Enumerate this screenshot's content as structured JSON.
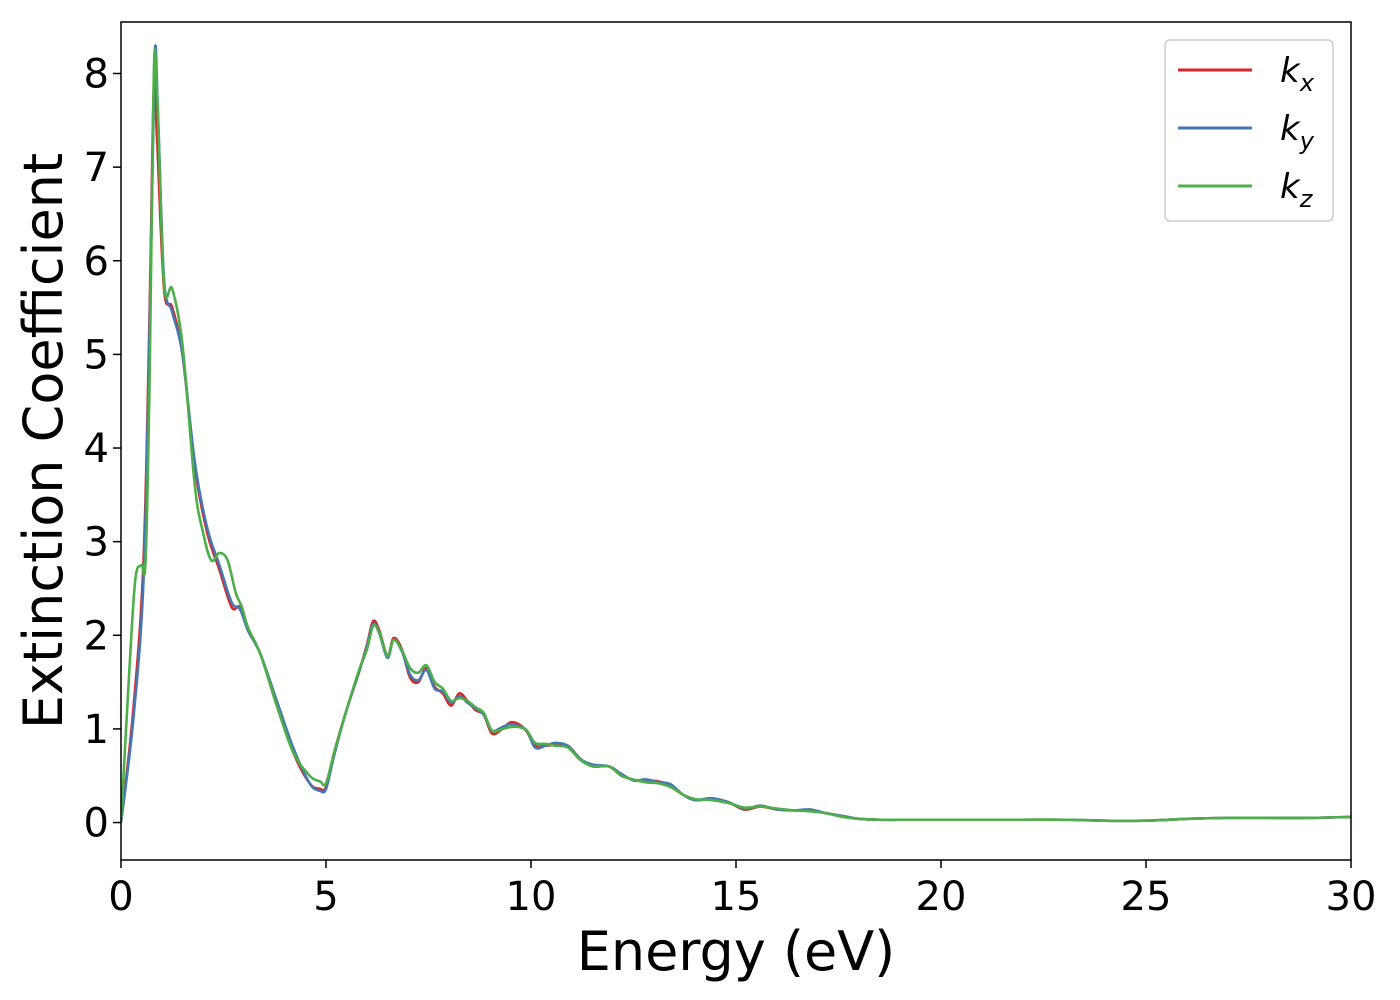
{
  "chart_data": {
    "type": "line",
    "xlabel": "Energy (eV)",
    "ylabel": "Extinction Coefficient",
    "xlim": [
      0,
      30
    ],
    "ylim": [
      -0.4,
      8.55
    ],
    "xticks": [
      0,
      5,
      10,
      15,
      20,
      25,
      30
    ],
    "yticks": [
      0,
      1,
      2,
      3,
      4,
      5,
      6,
      7,
      8
    ],
    "grid": false,
    "legend_position": "top-right",
    "series": [
      {
        "name": "k",
        "subscript": "x",
        "color": "#d62728",
        "x": [
          0,
          0.3,
          0.55,
          0.7,
          0.8,
          0.88,
          1.05,
          1.25,
          1.5,
          1.8,
          2.1,
          2.4,
          2.7,
          2.9,
          3.1,
          3.4,
          3.8,
          4.2,
          4.6,
          4.85,
          5.0,
          5.2,
          5.5,
          5.8,
          6.0,
          6.15,
          6.3,
          6.5,
          6.65,
          6.85,
          7.05,
          7.25,
          7.45,
          7.65,
          7.85,
          8.05,
          8.25,
          8.45,
          8.65,
          8.85,
          9.05,
          9.3,
          9.5,
          9.7,
          9.9,
          10.1,
          10.35,
          10.6,
          10.9,
          11.2,
          11.5,
          11.9,
          12.2,
          12.5,
          12.8,
          13.1,
          13.4,
          13.7,
          14.0,
          14.4,
          14.8,
          15.2,
          15.6,
          16.0,
          16.4,
          16.8,
          17.2,
          17.6,
          18.0,
          18.5,
          19.0,
          20.0,
          21.0,
          22.0,
          23.0,
          24.0,
          25.0,
          26.0,
          27.0,
          28.0,
          29.0,
          30.0
        ],
        "y": [
          0.0,
          1.2,
          2.8,
          5.5,
          7.85,
          7.3,
          5.7,
          5.5,
          5.0,
          3.8,
          3.1,
          2.7,
          2.3,
          2.3,
          2.05,
          1.8,
          1.25,
          0.75,
          0.42,
          0.36,
          0.38,
          0.75,
          1.2,
          1.6,
          1.9,
          2.15,
          2.05,
          1.78,
          1.97,
          1.85,
          1.55,
          1.5,
          1.65,
          1.45,
          1.38,
          1.25,
          1.38,
          1.3,
          1.2,
          1.15,
          0.95,
          1.0,
          1.07,
          1.05,
          0.97,
          0.82,
          0.82,
          0.83,
          0.82,
          0.68,
          0.6,
          0.6,
          0.52,
          0.45,
          0.45,
          0.44,
          0.4,
          0.3,
          0.24,
          0.25,
          0.22,
          0.14,
          0.17,
          0.14,
          0.13,
          0.13,
          0.1,
          0.07,
          0.04,
          0.03,
          0.03,
          0.03,
          0.03,
          0.03,
          0.03,
          0.02,
          0.02,
          0.04,
          0.05,
          0.05,
          0.05,
          0.06
        ]
      },
      {
        "name": "k",
        "subscript": "y",
        "color": "#4477b4",
        "x": [
          0,
          0.3,
          0.55,
          0.7,
          0.82,
          0.9,
          1.05,
          1.25,
          1.5,
          1.8,
          2.1,
          2.4,
          2.7,
          2.9,
          3.1,
          3.4,
          3.8,
          4.2,
          4.6,
          4.85,
          5.0,
          5.2,
          5.5,
          5.8,
          6.0,
          6.15,
          6.3,
          6.5,
          6.65,
          6.85,
          7.05,
          7.25,
          7.45,
          7.65,
          7.85,
          8.05,
          8.25,
          8.45,
          8.65,
          8.85,
          9.05,
          9.3,
          9.5,
          9.7,
          9.9,
          10.1,
          10.35,
          10.6,
          10.9,
          11.2,
          11.5,
          11.9,
          12.2,
          12.5,
          12.8,
          13.1,
          13.4,
          13.7,
          14.0,
          14.4,
          14.8,
          15.2,
          15.6,
          16.0,
          16.4,
          16.8,
          17.2,
          17.6,
          18.0,
          18.5,
          19.0,
          20.0,
          21.0,
          22.0,
          23.0,
          24.0,
          25.0,
          26.0,
          27.0,
          28.0,
          29.0,
          30.0
        ],
        "y": [
          0.0,
          1.1,
          2.6,
          5.3,
          8.17,
          7.6,
          5.8,
          5.45,
          5.0,
          3.85,
          3.15,
          2.75,
          2.35,
          2.28,
          2.05,
          1.8,
          1.3,
          0.8,
          0.42,
          0.34,
          0.36,
          0.72,
          1.2,
          1.6,
          1.88,
          2.12,
          2.02,
          1.76,
          1.95,
          1.83,
          1.58,
          1.52,
          1.63,
          1.43,
          1.4,
          1.28,
          1.35,
          1.28,
          1.22,
          1.15,
          0.98,
          1.02,
          1.05,
          1.03,
          0.98,
          0.8,
          0.82,
          0.85,
          0.82,
          0.68,
          0.62,
          0.6,
          0.52,
          0.45,
          0.46,
          0.43,
          0.41,
          0.3,
          0.24,
          0.26,
          0.22,
          0.15,
          0.18,
          0.14,
          0.13,
          0.14,
          0.1,
          0.07,
          0.04,
          0.03,
          0.03,
          0.03,
          0.03,
          0.03,
          0.03,
          0.02,
          0.02,
          0.04,
          0.05,
          0.05,
          0.05,
          0.06
        ]
      },
      {
        "name": "k",
        "subscript": "z",
        "color": "#4daf4a",
        "x": [
          0,
          0.2,
          0.35,
          0.5,
          0.6,
          0.7,
          0.8,
          0.88,
          1.05,
          1.25,
          1.5,
          1.8,
          2.0,
          2.2,
          2.4,
          2.6,
          2.8,
          2.95,
          3.1,
          3.4,
          3.8,
          4.2,
          4.6,
          4.85,
          5.0,
          5.2,
          5.5,
          5.8,
          6.0,
          6.15,
          6.3,
          6.5,
          6.65,
          6.85,
          7.05,
          7.25,
          7.45,
          7.65,
          7.85,
          8.05,
          8.25,
          8.45,
          8.65,
          8.85,
          9.05,
          9.3,
          9.5,
          9.7,
          9.9,
          10.1,
          10.35,
          10.6,
          10.9,
          11.2,
          11.5,
          11.9,
          12.2,
          12.5,
          12.8,
          13.1,
          13.4,
          13.7,
          14.0,
          14.4,
          14.8,
          15.2,
          15.6,
          16.0,
          16.4,
          16.8,
          17.2,
          17.6,
          18.0,
          18.5,
          19.0,
          20.0,
          21.0,
          22.0,
          23.0,
          24.0,
          25.0,
          26.0,
          27.0,
          28.0,
          29.0,
          30.0
        ],
        "y": [
          0.0,
          1.6,
          2.6,
          2.75,
          2.8,
          4.8,
          8.0,
          7.8,
          5.75,
          5.7,
          5.1,
          3.6,
          3.1,
          2.8,
          2.88,
          2.8,
          2.45,
          2.3,
          2.08,
          1.8,
          1.25,
          0.75,
          0.5,
          0.44,
          0.42,
          0.75,
          1.2,
          1.62,
          1.85,
          2.1,
          2.03,
          1.78,
          1.95,
          1.84,
          1.65,
          1.6,
          1.68,
          1.5,
          1.43,
          1.3,
          1.33,
          1.3,
          1.23,
          1.17,
          0.98,
          1.0,
          1.02,
          1.02,
          0.98,
          0.85,
          0.84,
          0.82,
          0.8,
          0.67,
          0.6,
          0.6,
          0.5,
          0.46,
          0.43,
          0.42,
          0.38,
          0.3,
          0.25,
          0.24,
          0.21,
          0.16,
          0.17,
          0.15,
          0.13,
          0.12,
          0.1,
          0.06,
          0.04,
          0.03,
          0.03,
          0.03,
          0.03,
          0.03,
          0.03,
          0.02,
          0.02,
          0.04,
          0.05,
          0.05,
          0.05,
          0.06
        ]
      }
    ]
  }
}
